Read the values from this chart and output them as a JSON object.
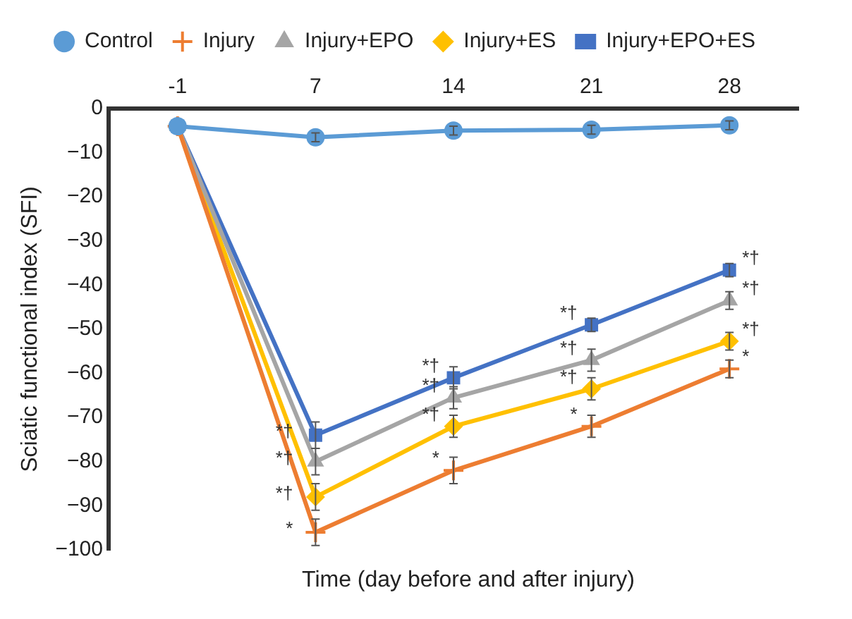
{
  "chart_data": {
    "type": "line",
    "xlabel": "Time (day before and after injury)",
    "ylabel": "Sciatic functional index (SFI)",
    "categories": [
      "-1",
      "7",
      "14",
      "21",
      "28"
    ],
    "ylim": [
      -100,
      0
    ],
    "yticks": [
      0,
      {
        "value": -10,
        "label": "−10"
      },
      {
        "value": -20,
        "label": "−20"
      },
      {
        "value": -30,
        "label": "−30"
      },
      {
        "value": -40,
        "label": "−40"
      },
      {
        "value": -50,
        "label": "−50"
      },
      {
        "value": -60,
        "label": "−60"
      },
      {
        "value": -70,
        "label": "−70"
      },
      {
        "value": -80,
        "label": "−80"
      },
      {
        "value": -90,
        "label": "−90"
      },
      {
        "value": -100,
        "label": "−100"
      }
    ],
    "grid": false,
    "legend": "top",
    "series": [
      {
        "name": "Control",
        "color": "#5b9bd5",
        "marker": "circle",
        "values": [
          -4,
          -6.5,
          -5,
          -4.8,
          -3.8
        ],
        "errors": [
          null,
          1,
          1,
          1,
          1
        ]
      },
      {
        "name": "Injury",
        "color": "#ed7d31",
        "marker": "cross",
        "values": [
          -4,
          -96,
          -82,
          -72,
          -59
        ],
        "errors": [
          null,
          3,
          3,
          2.5,
          2
        ]
      },
      {
        "name": "Injury+EPO",
        "color": "#a5a5a5",
        "marker": "triangle",
        "values": [
          -4,
          -80,
          -65.5,
          -57,
          -43.5
        ],
        "errors": [
          null,
          3,
          2.5,
          2.5,
          2
        ]
      },
      {
        "name": "Injury+ES",
        "color": "#ffc000",
        "marker": "diamond",
        "values": [
          -4,
          -88,
          -72,
          -63.5,
          -52.7
        ],
        "errors": [
          null,
          3,
          2.5,
          2.5,
          2
        ]
      },
      {
        "name": "Injury+EPO+ES",
        "color": "#4472c4",
        "marker": "square",
        "values": [
          -4,
          -74,
          -61,
          -49,
          -36.6
        ],
        "errors": [
          null,
          3,
          2.5,
          1.5,
          1.5
        ]
      }
    ],
    "annotations": [
      {
        "text": "*",
        "x": "7",
        "y": -96
      },
      {
        "text": "*†",
        "x": "7",
        "y": -88
      },
      {
        "text": "*†",
        "x": "7",
        "y": -80
      },
      {
        "text": "*†",
        "x": "7",
        "y": -74
      },
      {
        "text": "*",
        "x": "14",
        "y": -82
      },
      {
        "text": "*†",
        "x": "14",
        "y": -72
      },
      {
        "text": "*†",
        "x": "14",
        "y": -65.5
      },
      {
        "text": "*†",
        "x": "14",
        "y": -61
      },
      {
        "text": "*",
        "x": "21",
        "y": -72
      },
      {
        "text": "*†",
        "x": "21",
        "y": -63.5
      },
      {
        "text": "*†",
        "x": "21",
        "y": -57
      },
      {
        "text": "*†",
        "x": "21",
        "y": -49
      },
      {
        "text": "*",
        "x": "28",
        "y": -59
      },
      {
        "text": "*†",
        "x": "28",
        "y": -52.7
      },
      {
        "text": "*†",
        "x": "28",
        "y": -43.5
      },
      {
        "text": "*†",
        "x": "28",
        "y": -36.6
      }
    ]
  }
}
